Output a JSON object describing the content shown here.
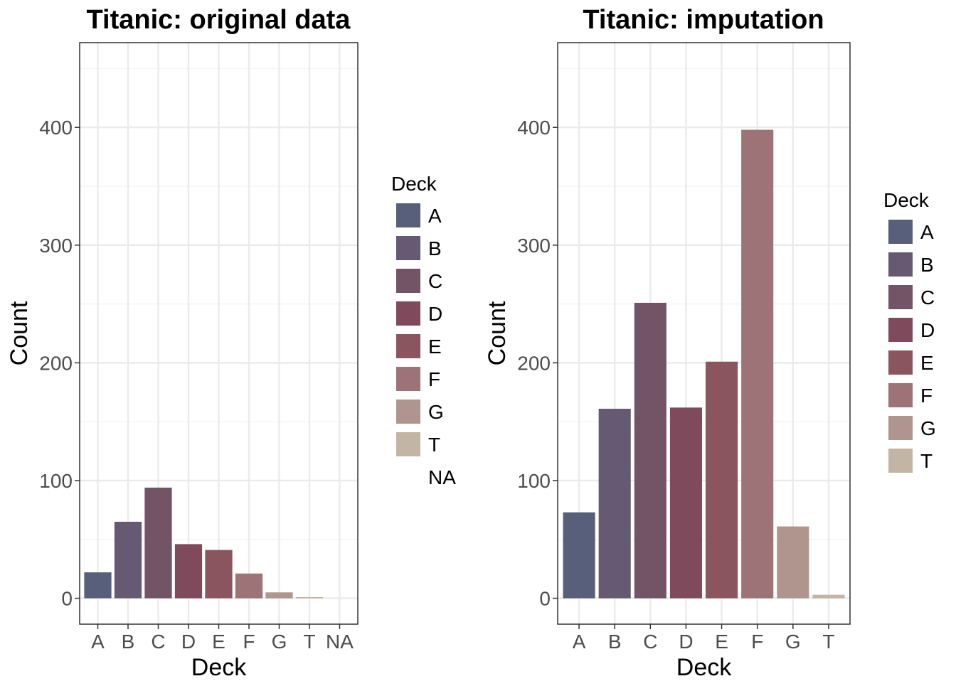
{
  "chart_data": [
    {
      "type": "bar",
      "title": "Titanic: original data",
      "xlabel": "Deck",
      "ylabel": "Count",
      "categories": [
        "A",
        "B",
        "C",
        "D",
        "E",
        "F",
        "G",
        "T",
        "NA"
      ],
      "values": [
        22,
        65,
        94,
        46,
        41,
        21,
        5,
        1,
        0
      ],
      "ylim": [
        -22,
        472
      ],
      "yticks": [
        "0",
        "100",
        "200",
        "300",
        "400"
      ],
      "grid": true,
      "legend": {
        "title": "Deck",
        "position": "right",
        "items": [
          "A",
          "B",
          "C",
          "D",
          "E",
          "F",
          "G",
          "T",
          "NA"
        ]
      }
    },
    {
      "type": "bar",
      "title": "Titanic: imputation",
      "xlabel": "Deck",
      "ylabel": "Count",
      "categories": [
        "A",
        "B",
        "C",
        "D",
        "E",
        "F",
        "G",
        "T"
      ],
      "values": [
        73,
        161,
        251,
        162,
        201,
        398,
        61,
        3
      ],
      "ylim": [
        -22,
        472
      ],
      "yticks": [
        "0",
        "100",
        "200",
        "300",
        "400"
      ],
      "grid": true,
      "legend": {
        "title": "Deck",
        "position": "right",
        "items": [
          "A",
          "B",
          "C",
          "D",
          "E",
          "F",
          "G",
          "T"
        ]
      }
    }
  ],
  "colors": {
    "A": "#575f7a",
    "B": "#665a72",
    "C": "#735467",
    "D": "#7f4b5c",
    "E": "#8b5560",
    "F": "#9d7377",
    "G": "#b0958f",
    "T": "#c3b5a5",
    "NA": "#ffffff"
  }
}
